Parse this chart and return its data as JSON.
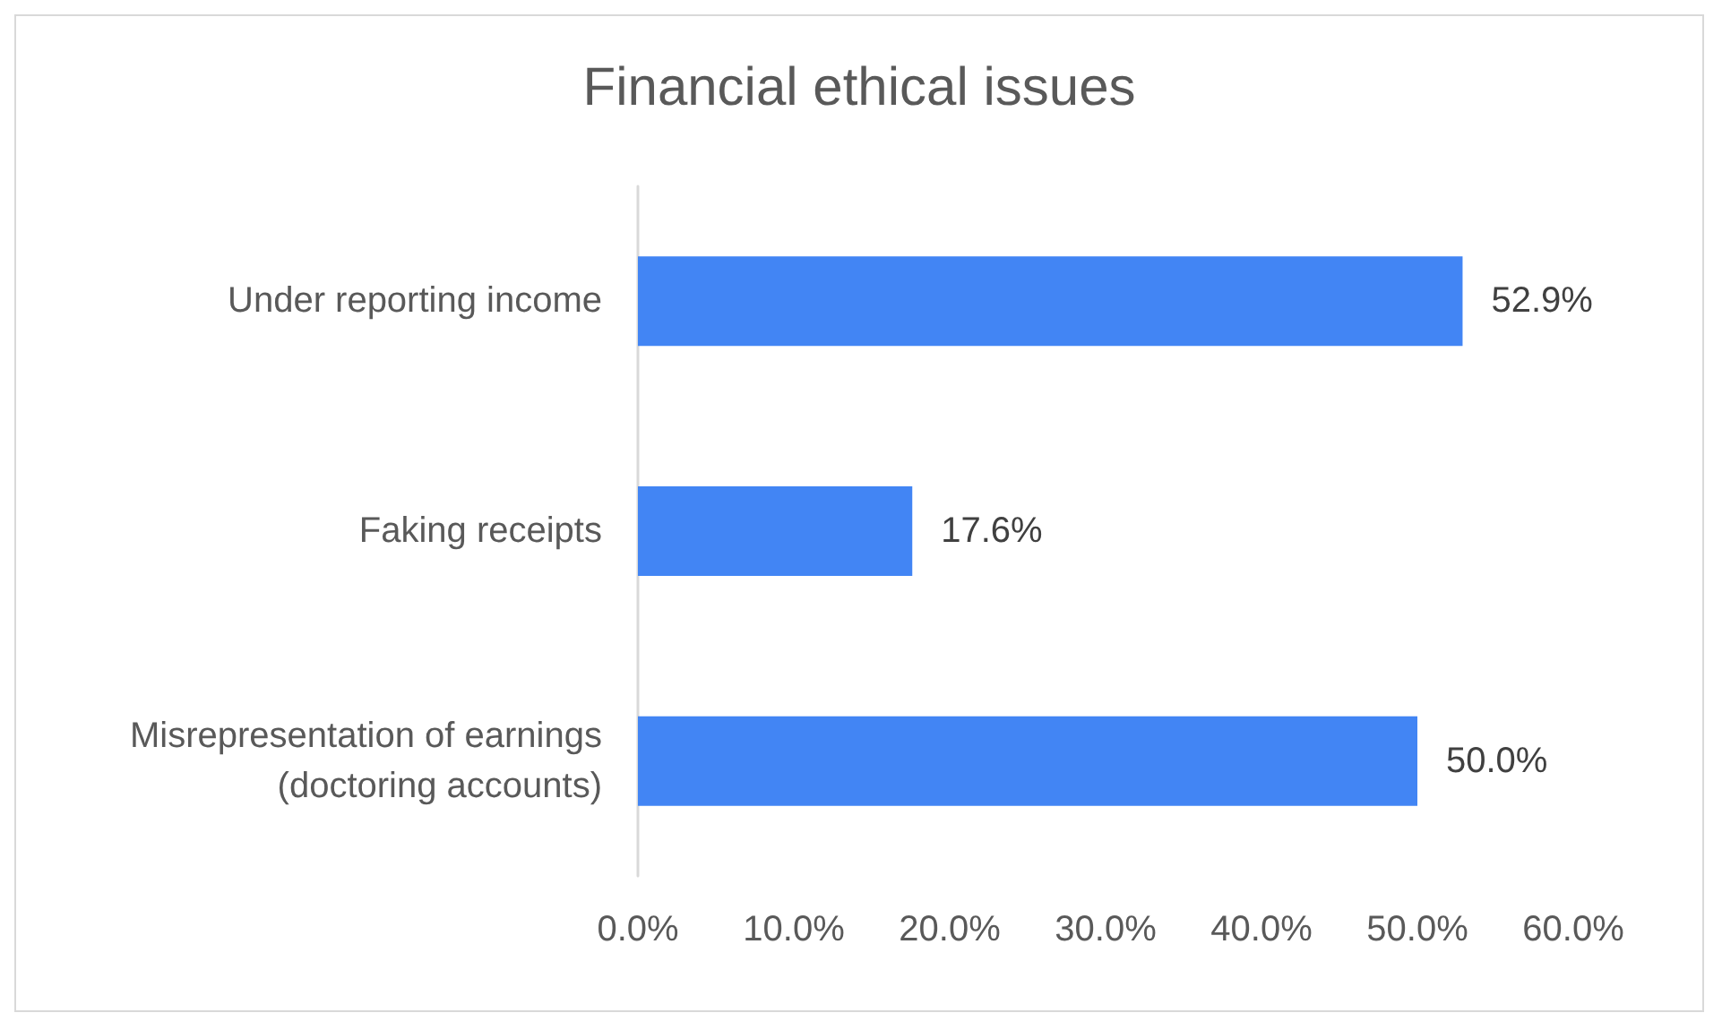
{
  "chart_data": {
    "type": "bar",
    "orientation": "horizontal",
    "title": "Financial ethical issues",
    "categories": [
      "Under reporting income",
      "Faking receipts",
      "Misrepresentation of earnings\n(doctoring accounts)"
    ],
    "values": [
      52.9,
      17.6,
      50.0
    ],
    "color": "#4285f4",
    "value_labels": [
      "52.9%",
      "17.6%",
      "50.0%"
    ],
    "xlim": [
      0,
      60
    ],
    "xticks": [
      {
        "value": 0,
        "label": "0.0%"
      },
      {
        "value": 10,
        "label": "10.0%"
      },
      {
        "value": 20,
        "label": "20.0%"
      },
      {
        "value": 30,
        "label": "30.0%"
      },
      {
        "value": 40,
        "label": "40.0%"
      },
      {
        "value": 50,
        "label": "50.0%"
      },
      {
        "value": 60,
        "label": "60.0%"
      }
    ],
    "grid": false
  }
}
